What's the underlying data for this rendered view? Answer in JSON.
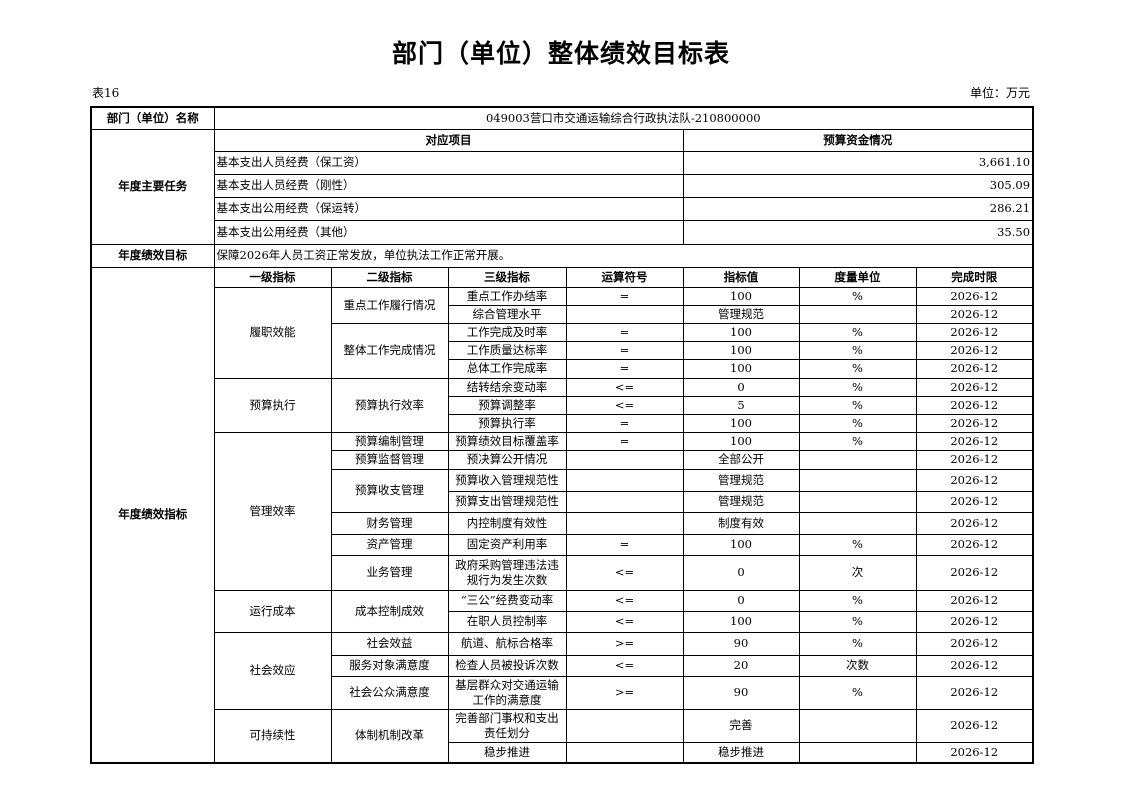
{
  "title": "部门（单位）整体绩效目标表",
  "table_no": "表16",
  "unit_label": "单位：万元",
  "dept": {
    "label": "部门（单位）名称",
    "value": "049003营口市交通运输综合行政执法队-210800000"
  },
  "tasks": {
    "label": "年度主要任务",
    "col_item": "对应项目",
    "col_budget": "预算资金情况",
    "rows": [
      {
        "item": "基本支出人员经费（保工资）",
        "amount": "3,661.10"
      },
      {
        "item": "基本支出人员经费（刚性）",
        "amount": "305.09"
      },
      {
        "item": "基本支出公用经费（保运转）",
        "amount": "286.21"
      },
      {
        "item": "基本支出公用经费（其他）",
        "amount": "35.50"
      }
    ]
  },
  "goal": {
    "label": "年度绩效目标",
    "value": "保障2026年人员工资正常发放，单位执法工作正常开展。"
  },
  "indicators": {
    "label": "年度绩效指标",
    "headers": [
      "一级指标",
      "二级指标",
      "三级指标",
      "运算符号",
      "指标值",
      "度量单位",
      "完成时限"
    ],
    "rows": [
      [
        "履职效能",
        "重点工作履行情况",
        "重点工作办结率",
        "=",
        "100",
        "%",
        "2026-12"
      ],
      [
        "履职效能",
        "重点工作履行情况",
        "综合管理水平",
        "",
        "管理规范",
        "",
        "2026-12"
      ],
      [
        "履职效能",
        "整体工作完成情况",
        "工作完成及时率",
        "=",
        "100",
        "%",
        "2026-12"
      ],
      [
        "履职效能",
        "整体工作完成情况",
        "工作质量达标率",
        "=",
        "100",
        "%",
        "2026-12"
      ],
      [
        "履职效能",
        "整体工作完成情况",
        "总体工作完成率",
        "=",
        "100",
        "%",
        "2026-12"
      ],
      [
        "预算执行",
        "预算执行效率",
        "结转结余变动率",
        "<=",
        "0",
        "%",
        "2026-12"
      ],
      [
        "预算执行",
        "预算执行效率",
        "预算调整率",
        "<=",
        "5",
        "%",
        "2026-12"
      ],
      [
        "预算执行",
        "预算执行效率",
        "预算执行率",
        "=",
        "100",
        "%",
        "2026-12"
      ],
      [
        "管理效率",
        "预算编制管理",
        "预算绩效目标覆盖率",
        "=",
        "100",
        "%",
        "2026-12"
      ],
      [
        "管理效率",
        "预算监督管理",
        "预决算公开情况",
        "",
        "全部公开",
        "",
        "2026-12"
      ],
      [
        "管理效率",
        "预算收支管理",
        "预算收入管理规范性",
        "",
        "管理规范",
        "",
        "2026-12"
      ],
      [
        "管理效率",
        "预算收支管理",
        "预算支出管理规范性",
        "",
        "管理规范",
        "",
        "2026-12"
      ],
      [
        "管理效率",
        "财务管理",
        "内控制度有效性",
        "",
        "制度有效",
        "",
        "2026-12"
      ],
      [
        "管理效率",
        "资产管理",
        "固定资产利用率",
        "=",
        "100",
        "%",
        "2026-12"
      ],
      [
        "管理效率",
        "业务管理",
        "政府采购管理违法违规行为发生次数",
        "<=",
        "0",
        "次",
        "2026-12"
      ],
      [
        "运行成本",
        "成本控制成效",
        "“三公”经费变动率",
        "<=",
        "0",
        "%",
        "2026-12"
      ],
      [
        "运行成本",
        "成本控制成效",
        "在职人员控制率",
        "<=",
        "100",
        "%",
        "2026-12"
      ],
      [
        "社会效应",
        "社会效益",
        "航道、航标合格率",
        ">=",
        "90",
        "%",
        "2026-12"
      ],
      [
        "社会效应",
        "服务对象满意度",
        "检查人员被投诉次数",
        "<=",
        "20",
        "次数",
        "2026-12"
      ],
      [
        "社会效应",
        "社会公众满意度",
        "基层群众对交通运输工作的满意度",
        ">=",
        "90",
        "%",
        "2026-12"
      ],
      [
        "可持续性",
        "体制机制改革",
        "完善部门事权和支出责任划分",
        "",
        "完善",
        "",
        "2026-12"
      ],
      [
        "可持续性",
        "体制机制改革",
        "稳步推进",
        "",
        "稳步推进",
        "",
        "2026-12"
      ]
    ]
  }
}
